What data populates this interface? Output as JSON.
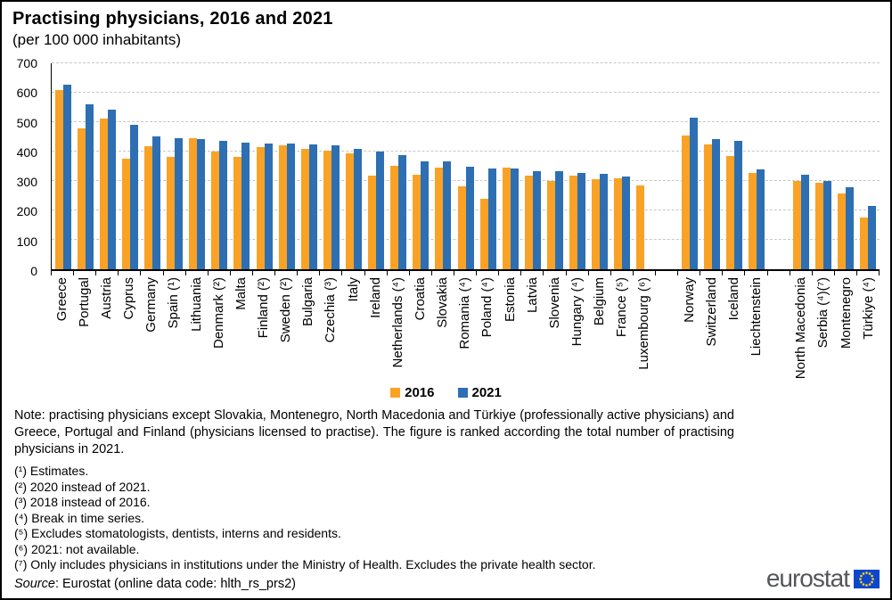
{
  "header": {
    "title": "Practising physicians, 2016 and 2021",
    "subtitle": "(per 100 000 inhabitants)"
  },
  "chart_data": {
    "type": "bar",
    "title": "Practising physicians, 2016 and 2021",
    "subtitle_unit": "(per 100 000 inhabitants)",
    "xlabel": "",
    "ylabel": "",
    "ylim": [
      0,
      700
    ],
    "yticks": [
      0,
      100,
      200,
      300,
      400,
      500,
      600,
      700
    ],
    "grid": "horizontal-dashed",
    "legend_position": "bottom-center",
    "categories": [
      "Greece",
      "Portugal",
      "Austria",
      "Cyprus",
      "Germany",
      "Spain (¹)",
      "Lithuania",
      "Denmark (²)",
      "Malta",
      "Finland (²)",
      "Sweden (²)",
      "Bulgaria",
      "Czechia (³)",
      "Italy",
      "Ireland",
      "Netherlands (⁴)",
      "Croatia",
      "Slovakia",
      "Romania (⁴)",
      "Poland (⁴)",
      "Estonia",
      "Latvia",
      "Slovenia",
      "Hungary (⁴)",
      "Belgium",
      "France (⁵)",
      "Luxembourg (⁶)",
      "Norway",
      "Switzerland",
      "Iceland",
      "Liechtenstein",
      "North Macedonia",
      "Serbia (⁴)(⁷)",
      "Montenegro",
      "Türkiye (⁴)"
    ],
    "gaps_after_categories": [
      "Luxembourg (⁶)",
      "Liechtenstein"
    ],
    "series": [
      {
        "name": "2016",
        "color": "#F9A226",
        "values": [
          610,
          478,
          511,
          375,
          417,
          381,
          444,
          399,
          381,
          416,
          420,
          408,
          402,
          393,
          317,
          351,
          320,
          345,
          281,
          238,
          346,
          318,
          300,
          317,
          306,
          310,
          284,
          456,
          424,
          386,
          328,
          299,
          293,
          257,
          177
        ]
      },
      {
        "name": "2021",
        "color": "#2D6FB2",
        "values": [
          628,
          562,
          542,
          490,
          451,
          446,
          443,
          435,
          431,
          428,
          428,
          425,
          422,
          409,
          399,
          387,
          368,
          366,
          348,
          342,
          341,
          334,
          333,
          327,
          325,
          316,
          null,
          515,
          442,
          436,
          340,
          321,
          301,
          279,
          216
        ]
      }
    ]
  },
  "legend": {
    "items": [
      {
        "label": "2016",
        "color": "#F9A226"
      },
      {
        "label": "2021",
        "color": "#2D6FB2"
      }
    ]
  },
  "note": "Note: practising physicians except Slovakia, Montenegro, North Macedonia and Türkiye (professionally active physicians) and Greece, Portugal and Finland (physicians licensed to practise). The figure is ranked according the total number of practising physicians in 2021.",
  "footnotes": [
    "(¹) Estimates.",
    "(²) 2020 instead of 2021.",
    "(³) 2018 instead of 2016.",
    "(⁴) Break in time series.",
    "(⁵) Excludes stomatologists, dentists, interns and residents.",
    "(⁶) 2021: not available.",
    "(⁷) Only includes physicians in institutions under the Ministry of Health. Excludes the private health sector."
  ],
  "source": {
    "label": "Source",
    "text": ": Eurostat (online data code: hlth_rs_prs2)"
  },
  "branding": {
    "logo_text": "eurostat",
    "logo_color": "#55565B",
    "flag_color": "#0E47CB",
    "star_color": "#FFD617"
  }
}
